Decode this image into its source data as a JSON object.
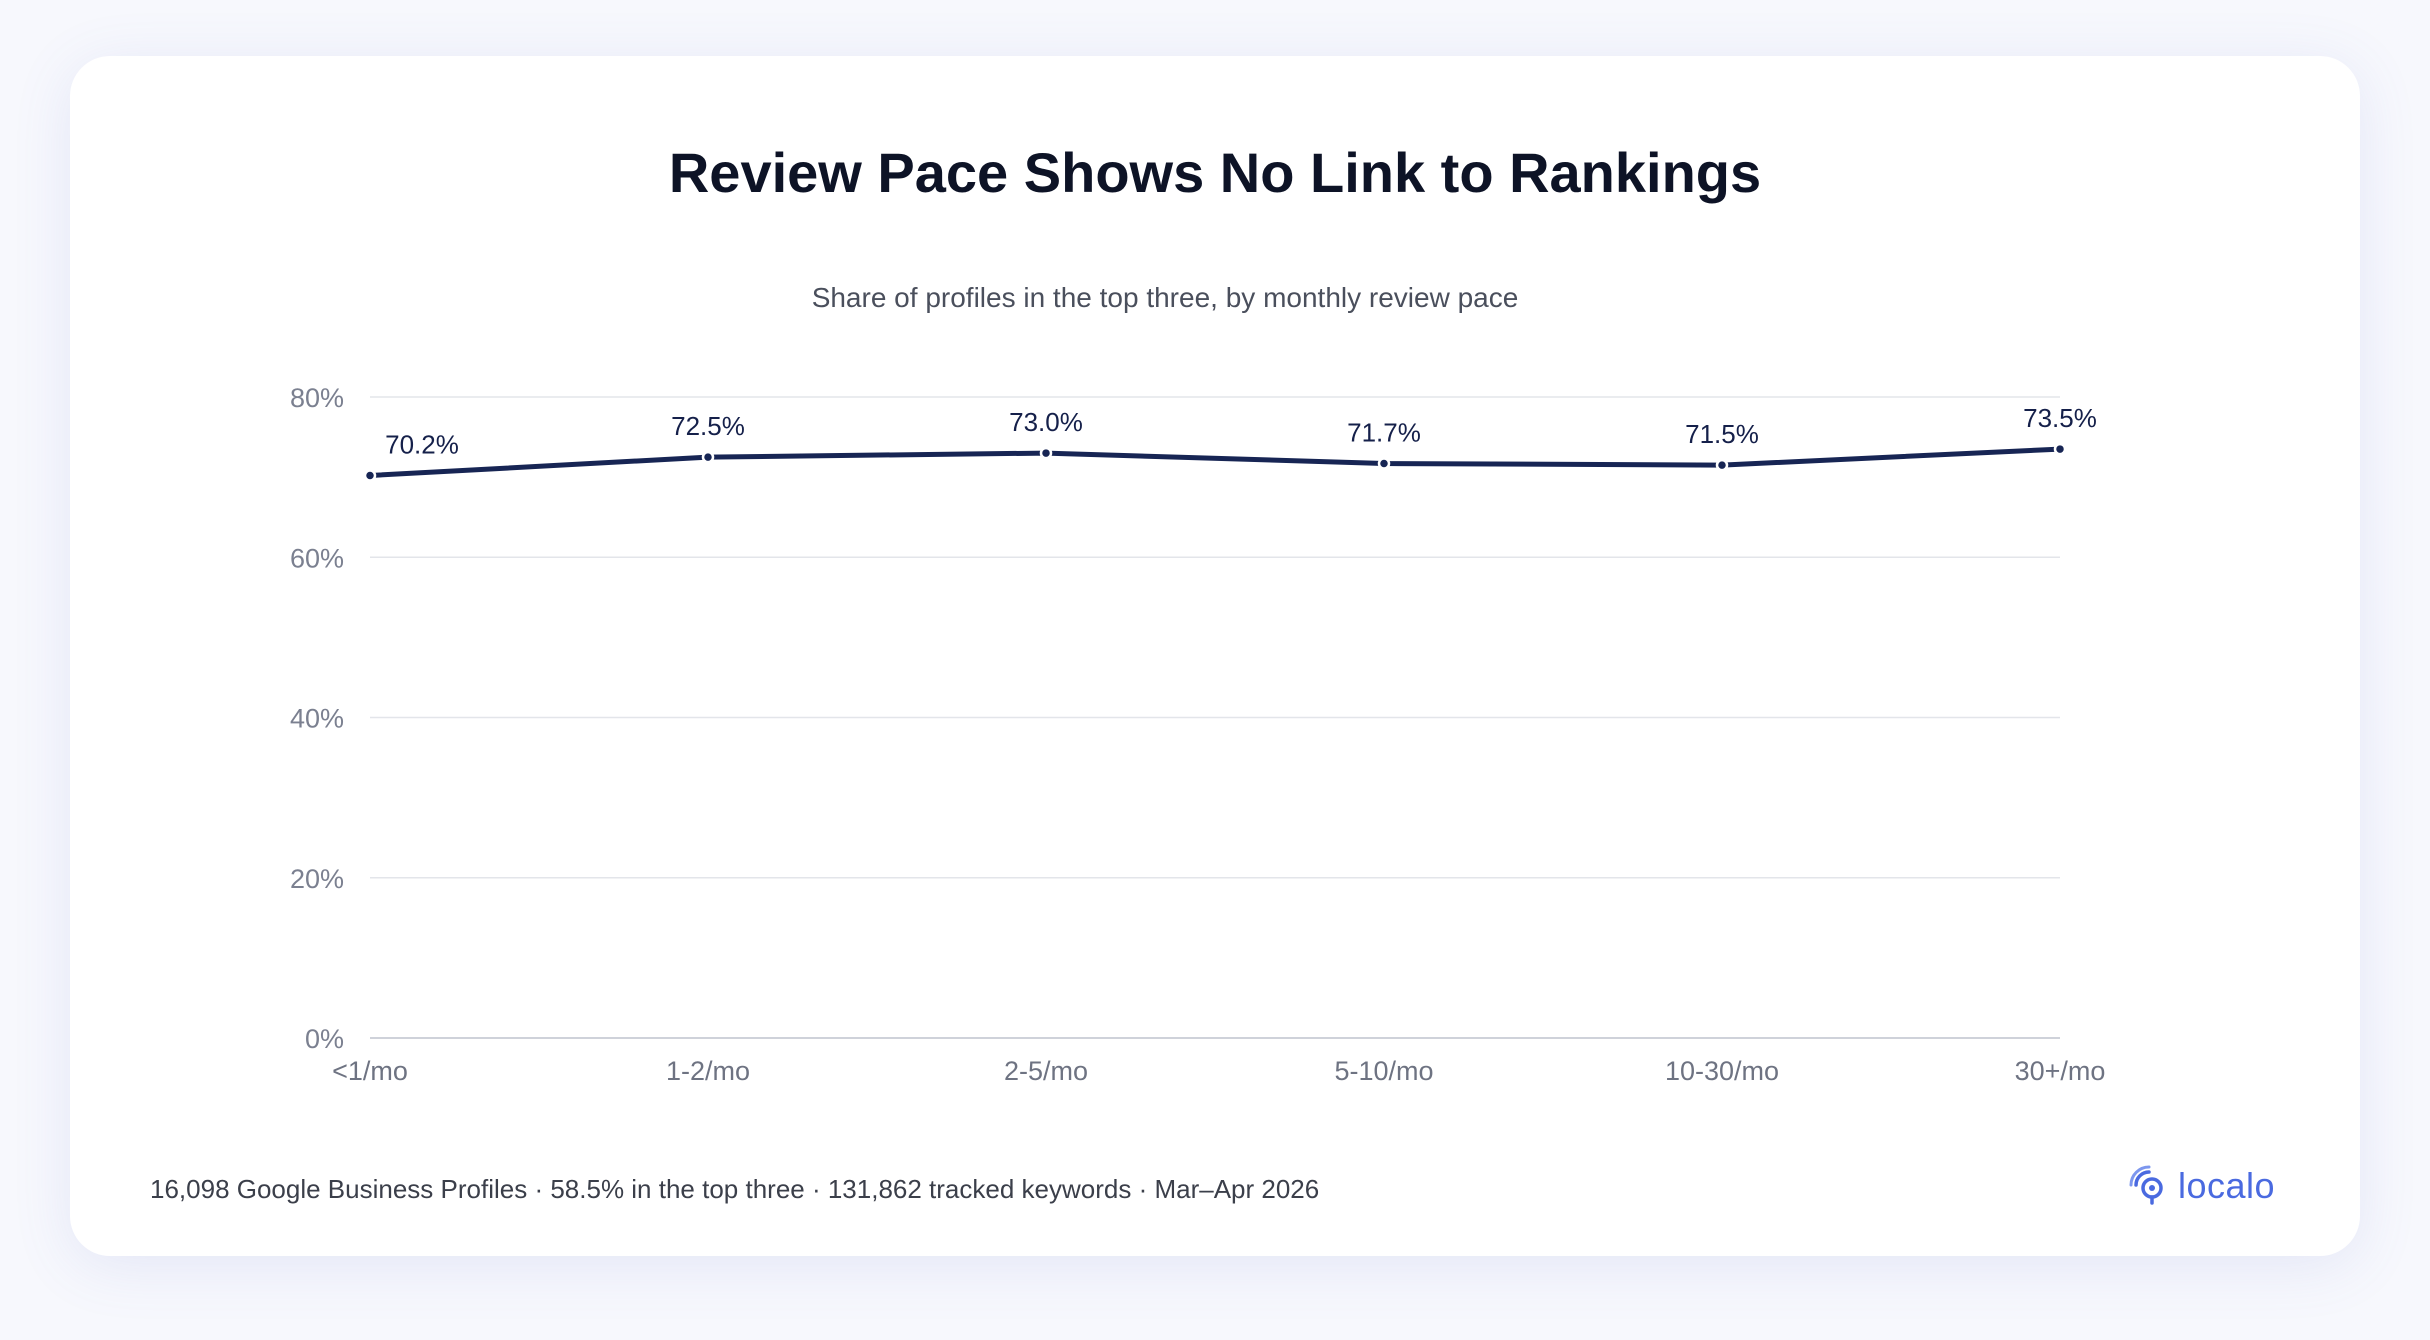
{
  "brand": {
    "name": "localo",
    "accent": "#4a6ae0"
  },
  "footer": {
    "text": "16,098 Google Business Profiles · 58.5% in the top three · 131,862 tracked keywords · Mar–Apr 2026"
  },
  "chart_data": {
    "type": "line",
    "title": "Review Pace Shows No Link to Rankings",
    "subtitle": "Share of profiles in the top three, by monthly review pace",
    "categories": [
      "<1/mo",
      "1-2/mo",
      "2-5/mo",
      "5-10/mo",
      "10-30/mo",
      "30+/mo"
    ],
    "series": [
      {
        "values": [
          70.2,
          72.5,
          73.0,
          71.7,
          71.5,
          73.5
        ],
        "color": "#172554"
      }
    ],
    "data_labels": [
      "70.2%",
      "72.5%",
      "73.0%",
      "71.7%",
      "71.5%",
      "73.5%"
    ],
    "yticks": [
      0,
      20,
      40,
      60,
      80
    ],
    "ytick_labels": [
      "0%",
      "20%",
      "40%",
      "60%",
      "80%"
    ],
    "ylim": [
      0,
      80
    ],
    "grid": true,
    "xlabel": "",
    "ylabel": ""
  }
}
